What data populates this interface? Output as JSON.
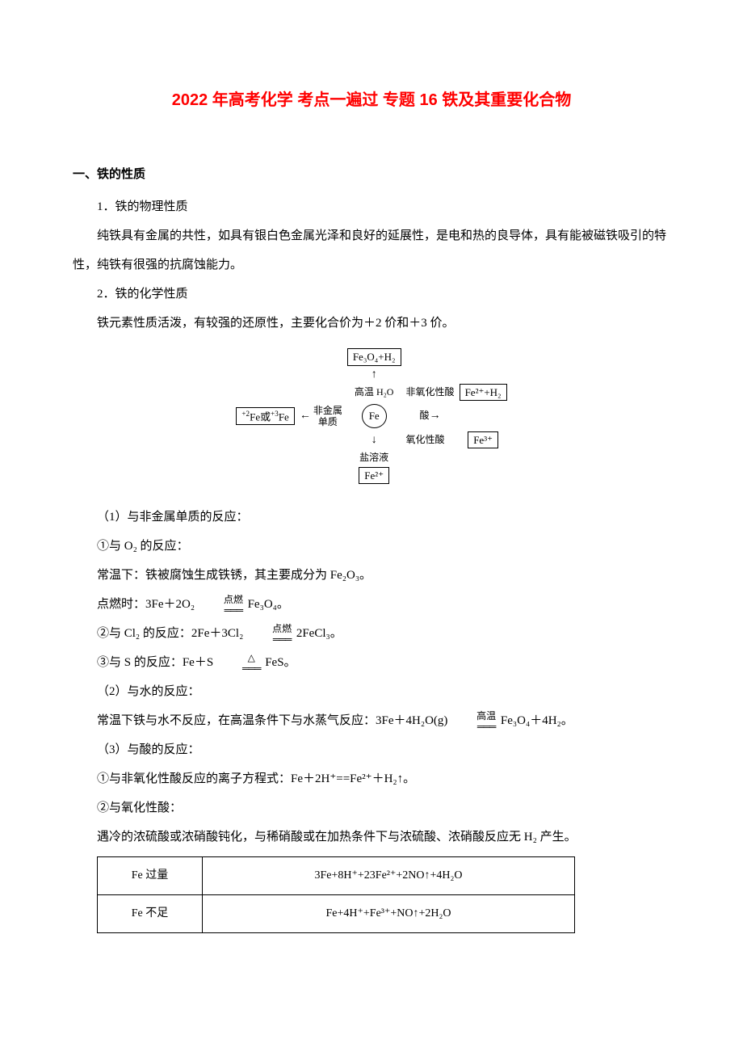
{
  "title": "2022 年高考化学 考点一遍过 专题 16 铁及其重要化合物",
  "section1": {
    "heading": "一、铁的性质",
    "sub1_title": "1．铁的物理性质",
    "sub1_body": "纯铁具有金属的共性，如具有银白色金属光泽和良好的延展性，是电和热的良导体，具有能被磁铁吸引的特性，纯铁有很强的抗腐蚀能力。",
    "sub2_title": "2．铁的化学性质",
    "sub2_intro": "铁元素性质活泼，有较强的还原性，主要化合价为＋2 价和＋3 价。"
  },
  "diagram": {
    "top_box": "Fe₃O₄+H₂",
    "top_label_left": "高温",
    "top_label_right": "H₂O",
    "left_box": "Fe或Fe",
    "left_box_sup1": "+2",
    "left_box_sup2": "+3",
    "left_arrow_label_top": "非金属",
    "left_arrow_label_bot": "单质",
    "center": "Fe",
    "right_arrow_label": "酸",
    "right_branch_top": "非氧化性酸",
    "right_branch_bot": "氧化性酸",
    "right_box_top": "Fe²⁺+H₂",
    "right_box_bot": "Fe³⁺",
    "bottom_label": "盐溶液",
    "bottom_box": "Fe²⁺"
  },
  "body": {
    "r1_title": "（1）与非金属单质的反应：",
    "r1_o2_title": "①与 O₂ 的反应：",
    "r1_o2_normal": "常温下：铁被腐蚀生成铁锈，其主要成分为 Fe₂O₃。",
    "r1_o2_burn_prefix": "点燃时：3Fe＋2O₂",
    "r1_o2_burn_cond": "点燃",
    "r1_o2_burn_suffix": " Fe₃O₄。",
    "r1_cl2_prefix": "②与 Cl₂ 的反应：2Fe＋3Cl₂ ",
    "r1_cl2_cond": "点燃",
    "r1_cl2_suffix": " 2FeCl₃。",
    "r1_s_prefix": "③与 S 的反应：Fe＋S ",
    "r1_s_cond": "△",
    "r1_s_suffix": " FeS。",
    "r2_title": "（2）与水的反应：",
    "r2_body_prefix": "常温下铁与水不反应，在高温条件下与水蒸气反应：3Fe＋4H₂O(g) ",
    "r2_cond": "高温",
    "r2_body_suffix": " Fe₃O₄＋4H₂。",
    "r3_title": "（3）与酸的反应：",
    "r3_nonox": "①与非氧化性酸反应的离子方程式：Fe＋2H⁺==Fe²⁺＋H₂↑。",
    "r3_ox_title": "②与氧化性酸：",
    "r3_ox_body": "遇冷的浓硫酸或浓硝酸钝化，与稀硝酸或在加热条件下与浓硫酸、浓硝酸反应无 H₂ 产生。"
  },
  "table": {
    "rows": [
      [
        "Fe 过量",
        "3Fe+8H⁺+23Fe²⁺+2NO↑+4H₂O"
      ],
      [
        "Fe 不足",
        "Fe+4H⁺+Fe³⁺+NO↑+2H₂O"
      ]
    ],
    "col1_width": "22%",
    "col2_width": "78%"
  },
  "style": {
    "title_color": "#ff0000",
    "text_color": "#000000",
    "background": "#ffffff",
    "body_fontsize": 15,
    "title_fontsize": 20
  }
}
